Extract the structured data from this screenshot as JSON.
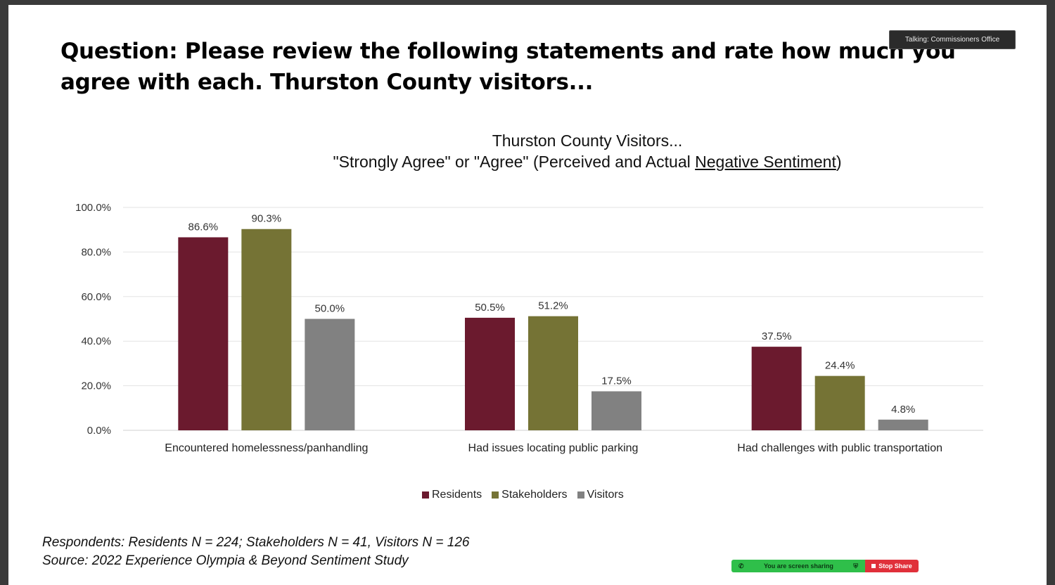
{
  "question": {
    "line1": "Question: Please review the following statements and rate how much you",
    "line2": "agree with each. Thurston County visitors..."
  },
  "chart_data": {
    "type": "bar",
    "title_line1": "Thurston County Visitors...",
    "title_line2_prefix": "\"Strongly Agree\" or \"Agree\" (Perceived and Actual ",
    "title_line2_underlined": "Negative Sentiment",
    "title_line2_suffix": ")",
    "categories": [
      "Encountered homelessness/panhandling",
      "Had issues locating public parking",
      "Had challenges with public transportation"
    ],
    "series": [
      {
        "name": "Residents",
        "color": "#6b1a2e",
        "values": [
          86.6,
          50.5,
          37.5
        ],
        "labels": [
          "86.6%",
          "50.5%",
          "37.5%"
        ]
      },
      {
        "name": "Stakeholders",
        "color": "#757335",
        "values": [
          90.3,
          51.2,
          24.4
        ],
        "labels": [
          "90.3%",
          "51.2%",
          "24.4%"
        ]
      },
      {
        "name": "Visitors",
        "color": "#818181",
        "values": [
          50.0,
          17.5,
          4.8
        ],
        "labels": [
          "50.0%",
          "17.5%",
          "4.8%"
        ]
      }
    ],
    "ylim": [
      0,
      100
    ],
    "yticks": [
      "0.0%",
      "20.0%",
      "40.0%",
      "60.0%",
      "80.0%",
      "100.0%"
    ],
    "grid": true,
    "legend": "bottom"
  },
  "footnote": {
    "line1": "Respondents: Residents N = 224; Stakeholders N = 41, Visitors N = 126",
    "line2": "Source: 2022 Experience Olympia & Beyond Sentiment Study"
  },
  "overlay": {
    "talking": "Talking: Commissioners Office",
    "sharing_status": "You are screen sharing",
    "stop_share": "Stop Share",
    "colors": {
      "sharing": "#2fbf4a",
      "stop": "#e0303a"
    }
  }
}
